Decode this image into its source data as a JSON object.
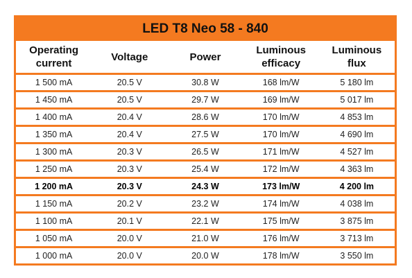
{
  "header": {
    "title": "LED T8 Neo 58 - 840"
  },
  "table": {
    "columns": [
      "Operating current",
      "Voltage",
      "Power",
      "Luminous efficacy",
      "Luminous flux"
    ],
    "rows": [
      [
        "1 500 mA",
        "20.5 V",
        "30.8 W",
        "168 lm/W",
        "5 180 lm"
      ],
      [
        "1 450 mA",
        "20.5 V",
        "29.7 W",
        "169 lm/W",
        "5 017 lm"
      ],
      [
        "1 400 mA",
        "20.4 V",
        "28.6 W",
        "170 lm/W",
        "4 853 lm"
      ],
      [
        "1 350 mA",
        "20.4 V",
        "27.5 W",
        "170 lm/W",
        "4 690 lm"
      ],
      [
        "1 300 mA",
        "20.3 V",
        "26.5 W",
        "171 lm/W",
        "4 527 lm"
      ],
      [
        "1 250 mA",
        "20.3 V",
        "25.4 W",
        "172 lm/W",
        "4 363 lm"
      ],
      [
        "1 200 mA",
        "20.3 V",
        "24.3 W",
        "173 lm/W",
        "4 200 lm"
      ],
      [
        "1 150 mA",
        "20.2 V",
        "23.2 W",
        "174 lm/W",
        "4 038 lm"
      ],
      [
        "1 100 mA",
        "20.1 V",
        "22.1 W",
        "175 lm/W",
        "3 875 lm"
      ],
      [
        "1 050 mA",
        "20.0 V",
        "21.0 W",
        "176 lm/W",
        "3 713 lm"
      ],
      [
        "1 000 mA",
        "20.0 V",
        "20.0 W",
        "178 lm/W",
        "3 550 lm"
      ]
    ]
  }
}
